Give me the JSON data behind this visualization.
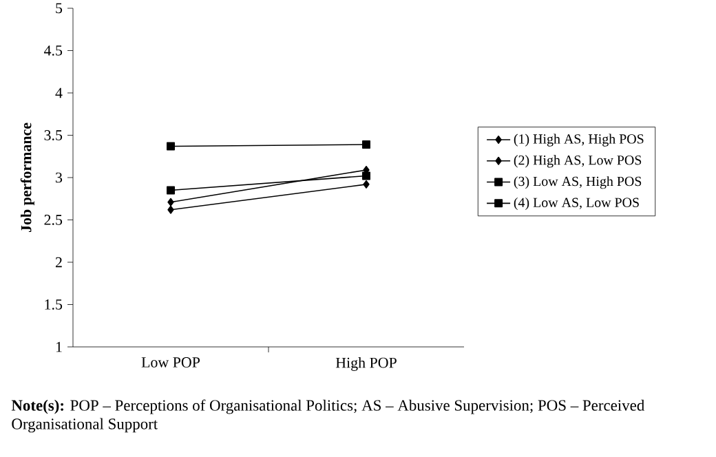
{
  "chart_data": {
    "type": "line",
    "ylabel": "Job performance",
    "categories": [
      "Low POP",
      "High POP"
    ],
    "series": [
      {
        "name": "(1) High AS, High POS",
        "color": "#000000",
        "marker": "diamond",
        "values": [
          2.71,
          3.09
        ]
      },
      {
        "name": "(2) High AS, Low POS",
        "color": "#000000",
        "marker": "diamond",
        "values": [
          2.62,
          2.92
        ]
      },
      {
        "name": "(3) Low AS, High POS",
        "color": "#000000",
        "marker": "square",
        "values": [
          3.37,
          3.39
        ]
      },
      {
        "name": "(4) Low AS, Low POS",
        "color": "#000000",
        "marker": "square",
        "values": [
          2.85,
          3.02
        ]
      }
    ],
    "ylim": [
      1,
      5
    ],
    "yticks": [
      1,
      1.5,
      2,
      2.5,
      3,
      3.5,
      4,
      4.5,
      5
    ],
    "grid": false,
    "legend": "right",
    "line_style": "solid",
    "annotations": [
      "**Note(s):** POP – Perceptions of Organisational Politics; AS – Abusive Supervision; POS – Perceived Organisational Support"
    ]
  }
}
